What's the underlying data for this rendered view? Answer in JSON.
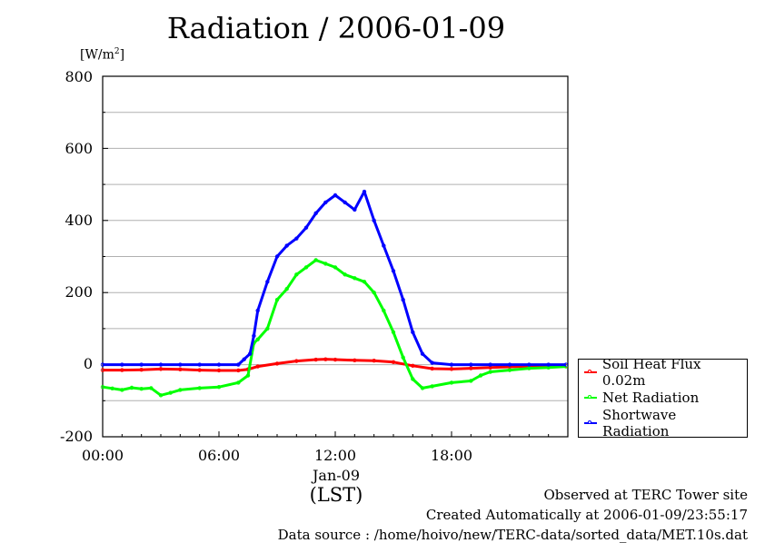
{
  "chart_data": {
    "type": "line",
    "title": "Radiation / 2006-01-09",
    "unit_label": "[W/m",
    "unit_sup": "2",
    "unit_close": "]",
    "ylim": [
      -200,
      800
    ],
    "yticks": [
      -200,
      0,
      200,
      400,
      600,
      800
    ],
    "xlim": [
      0,
      24
    ],
    "xticks": [
      0,
      6,
      12,
      18
    ],
    "xtick_labels": [
      "00:00",
      "06:00",
      "12:00",
      "18:00"
    ],
    "date_label": "Jan-09",
    "xlabel": "(LST)",
    "grid": "horizontal",
    "legend_position": "bottom-right",
    "series": [
      {
        "name": "Soil Heat Flux 0.02m",
        "color": "#ff0000",
        "x": [
          0,
          1,
          2,
          3,
          4,
          5,
          6,
          7,
          7.5,
          8,
          9,
          10,
          11,
          11.5,
          12,
          13,
          14,
          15,
          16,
          17,
          18,
          19,
          20,
          21,
          22,
          23,
          23.9
        ],
        "y": [
          -15,
          -15,
          -14,
          -12,
          -13,
          -15,
          -16,
          -16,
          -13,
          -5,
          3,
          10,
          14,
          15,
          14,
          12,
          11,
          7,
          -3,
          -11,
          -12,
          -10,
          -8,
          -6,
          -4,
          -3,
          -3
        ]
      },
      {
        "name": "Net Radiation",
        "color": "#00ff00",
        "x": [
          0,
          0.5,
          1,
          1.5,
          2,
          2.5,
          3,
          3.5,
          4,
          5,
          6,
          7,
          7.5,
          7.8,
          8,
          8.5,
          9,
          9.5,
          10,
          10.5,
          11,
          11.5,
          12,
          12.5,
          13,
          13.5,
          14,
          14.5,
          15,
          15.5,
          16,
          16.5,
          17,
          18,
          19,
          19.5,
          20,
          21,
          22,
          23,
          23.9
        ],
        "y": [
          -62,
          -66,
          -70,
          -64,
          -67,
          -65,
          -85,
          -78,
          -70,
          -65,
          -62,
          -50,
          -30,
          60,
          70,
          100,
          180,
          210,
          250,
          270,
          290,
          280,
          270,
          250,
          240,
          230,
          200,
          150,
          90,
          20,
          -40,
          -65,
          -60,
          -50,
          -45,
          -30,
          -20,
          -15,
          -10,
          -8,
          -5
        ]
      },
      {
        "name": "Shortwave Radiation",
        "color": "#0000ff",
        "x": [
          0,
          1,
          2,
          3,
          4,
          5,
          6,
          7,
          7.3,
          7.6,
          7.8,
          8,
          8.5,
          9,
          9.5,
          10,
          10.5,
          11,
          11.5,
          12,
          12.5,
          13,
          13.5,
          14,
          14.5,
          15,
          15.5,
          16,
          16.5,
          17,
          18,
          19,
          20,
          21,
          22,
          23,
          23.9
        ],
        "y": [
          0,
          0,
          0,
          0,
          0,
          0,
          0,
          0,
          15,
          30,
          80,
          150,
          230,
          300,
          330,
          350,
          380,
          420,
          450,
          470,
          450,
          430,
          480,
          400,
          330,
          260,
          180,
          90,
          30,
          5,
          0,
          0,
          0,
          0,
          0,
          0,
          0
        ]
      }
    ]
  },
  "footer": {
    "line1": "Observed at TERC Tower site",
    "line2": "Created Automatically at 2006-01-09/23:55:17",
    "line3": "Data source : /home/hoivo/new/TERC-data/sorted_data/MET.10s.dat"
  }
}
